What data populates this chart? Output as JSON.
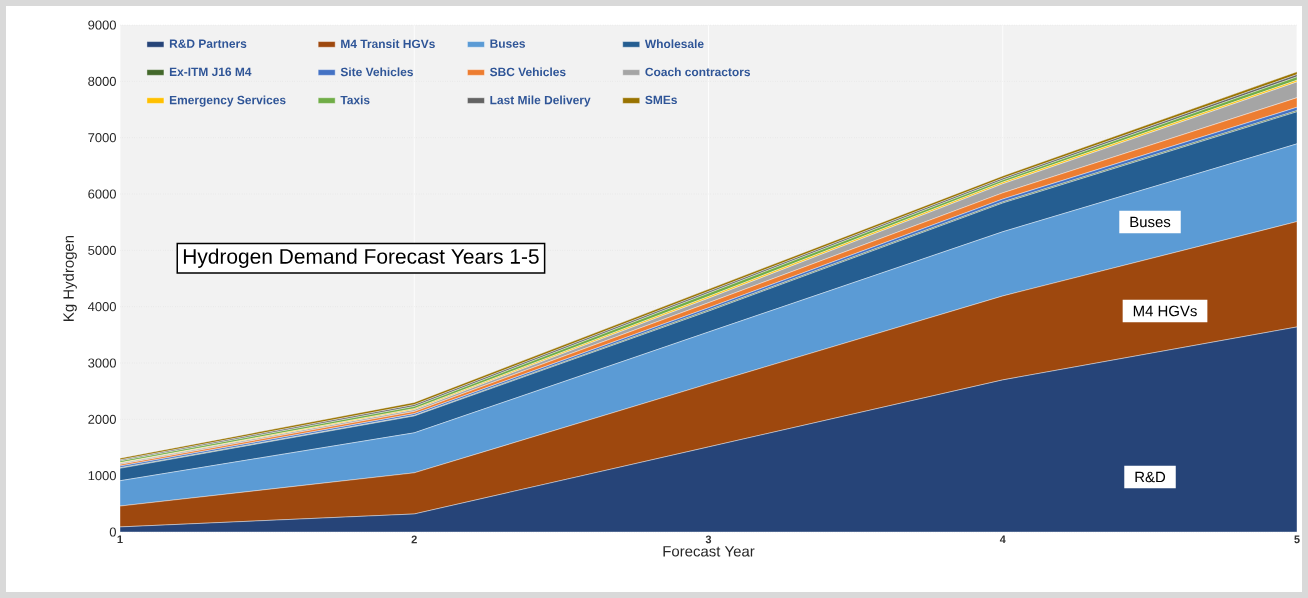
{
  "chart_data": {
    "type": "area",
    "title": "Hydrogen Demand Forecast Years 1-5",
    "xlabel": "Forecast Year",
    "ylabel": "Kg Hydrogen",
    "x": [
      1,
      2,
      3,
      4,
      5
    ],
    "stacked": true,
    "series": [
      {
        "name": "R&D Partners",
        "color": "#264478",
        "values": [
          90,
          320,
          1510,
          2700,
          3640
        ]
      },
      {
        "name": "M4 Transit HGVs",
        "color": "#9e480e",
        "values": [
          370,
          730,
          1120,
          1490,
          1870
        ]
      },
      {
        "name": "Buses",
        "color": "#5b9bd5",
        "values": [
          450,
          710,
          920,
          1140,
          1380
        ]
      },
      {
        "name": "Wholesale",
        "color": "#255e91",
        "values": [
          220,
          300,
          370,
          510,
          570
        ]
      },
      {
        "name": "Ex-ITM J16 M4",
        "color": "#43682b",
        "values": [
          10,
          10,
          20,
          20,
          20
        ]
      },
      {
        "name": "Site Vehicles",
        "color": "#4472c4",
        "values": [
          30,
          30,
          40,
          50,
          60
        ]
      },
      {
        "name": "SBC Vehicles",
        "color": "#ed7d31",
        "values": [
          30,
          40,
          90,
          110,
          170
        ]
      },
      {
        "name": "Coach contractors",
        "color": "#a5a5a5",
        "values": [
          20,
          30,
          80,
          160,
          280
        ]
      },
      {
        "name": "Emergency Services",
        "color": "#ffc000",
        "values": [
          10,
          20,
          30,
          30,
          30
        ]
      },
      {
        "name": "Taxis",
        "color": "#70ad47",
        "values": [
          30,
          40,
          60,
          40,
          60
        ]
      },
      {
        "name": "Last Mile Delivery",
        "color": "#636363",
        "values": [
          20,
          30,
          30,
          30,
          40
        ]
      },
      {
        "name": "SMEs",
        "color": "#997300",
        "values": [
          30,
          40,
          40,
          40,
          50
        ]
      }
    ],
    "xlim": [
      1,
      5
    ],
    "ylim": [
      0,
      9000
    ],
    "xticks": [
      1,
      2,
      3,
      4,
      5
    ],
    "yticks": [
      0,
      1000,
      2000,
      3000,
      4000,
      5000,
      6000,
      7000,
      8000,
      9000
    ],
    "grid": true,
    "legend": "top left",
    "annotations": [
      "Buses",
      "M4 HGVs",
      "R&D"
    ]
  }
}
